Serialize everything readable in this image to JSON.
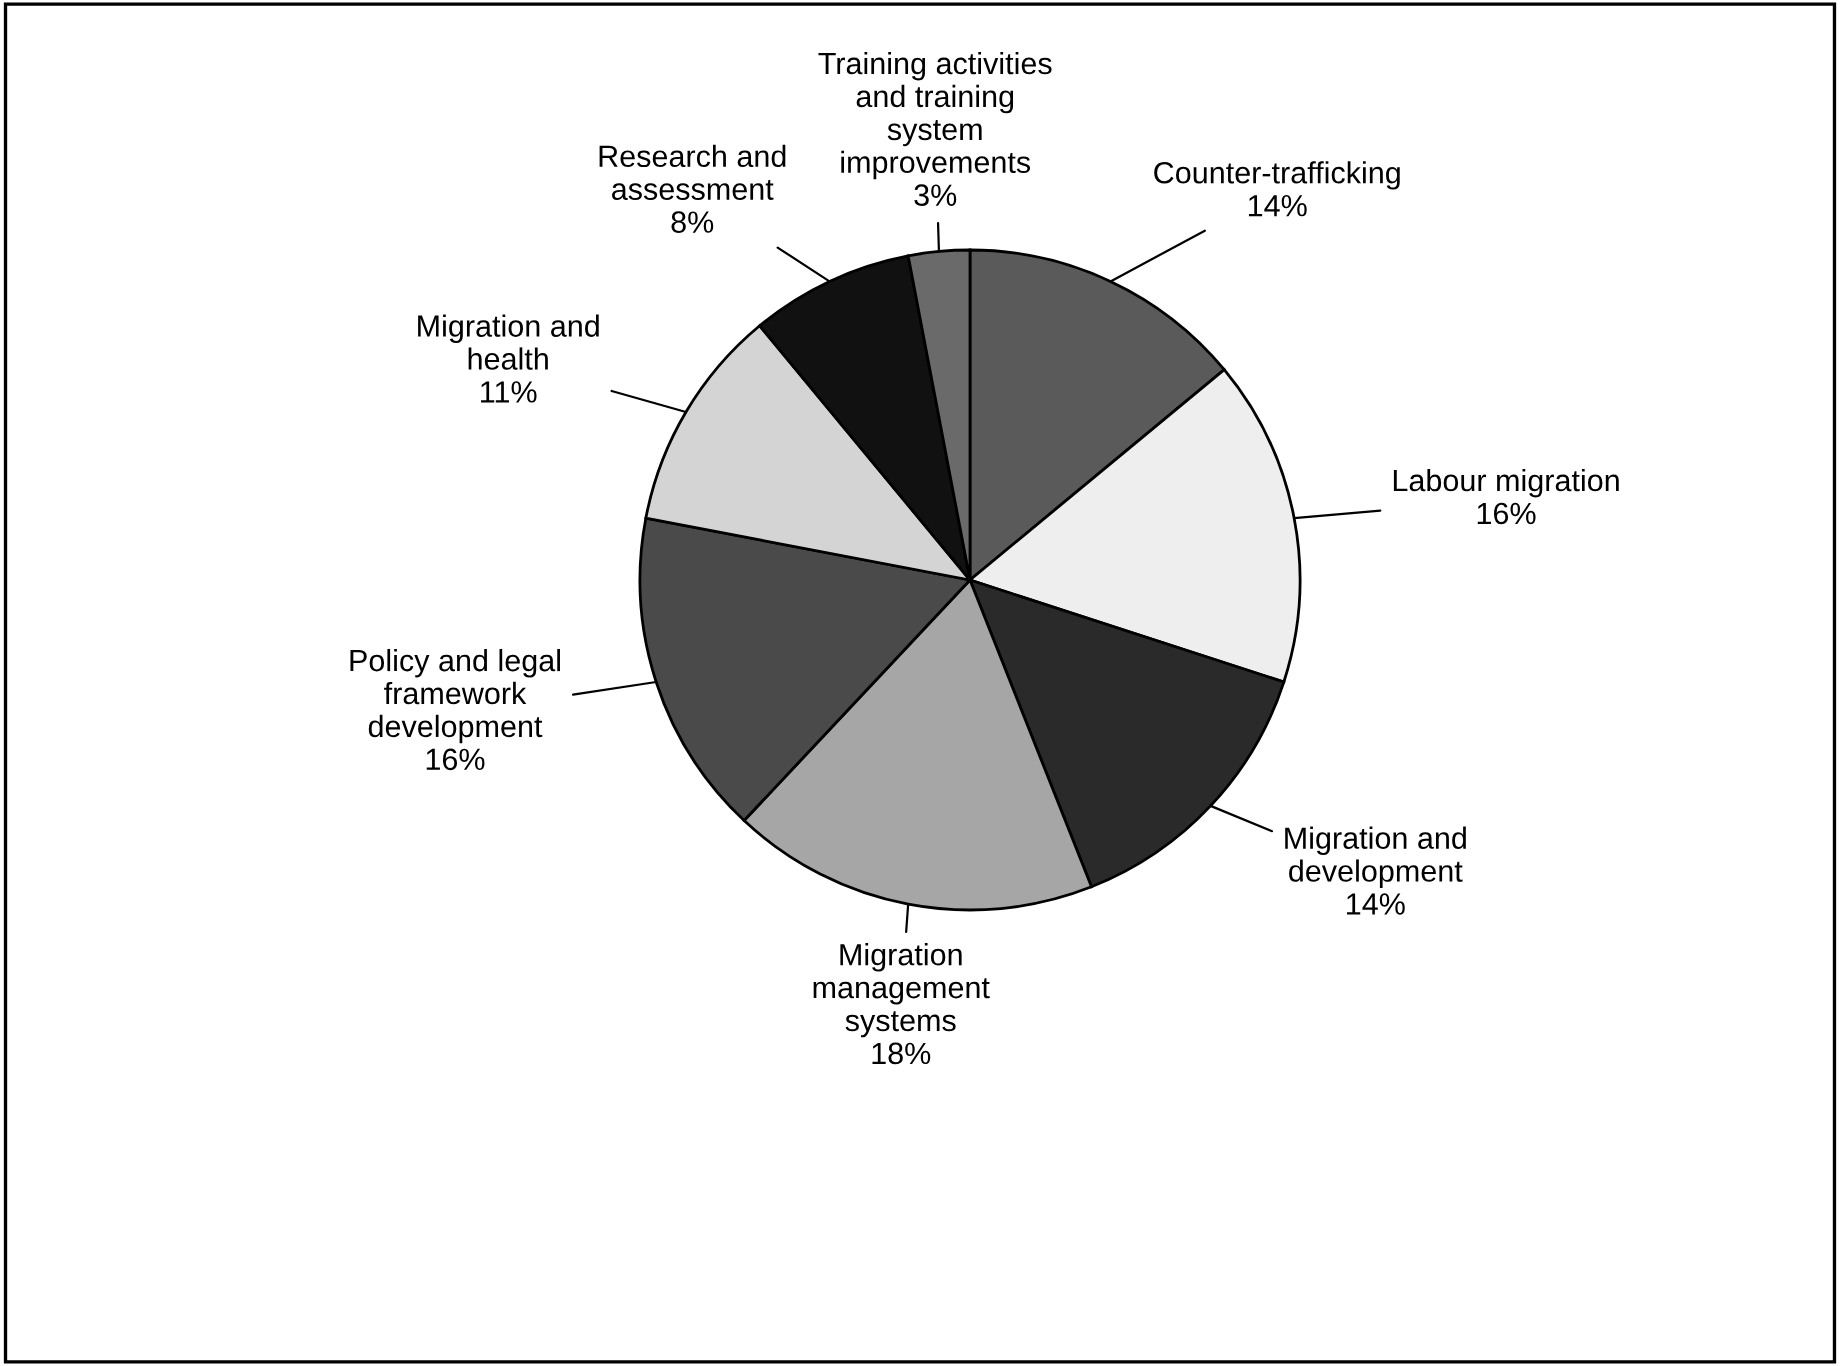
{
  "chart_data": {
    "type": "pie",
    "categories": [
      "Counter-trafficking",
      "Labour migration",
      "Migration and\ndevelopment",
      "Migration\nmanagement\nsystems",
      "Policy and legal\nframework\ndevelopment",
      "Migration and\nhealth",
      "Research and\nassessment",
      "Training activities\nand training\nsystem\nimprovements"
    ],
    "values": [
      14,
      16,
      14,
      18,
      16,
      11,
      8,
      3
    ],
    "colors": [
      "#5a5a5a",
      "#eeeeee",
      "#2a2a2a",
      "#a6a6a6",
      "#4a4a4a",
      "#d4d4d4",
      "#111111",
      "#6a6a6a"
    ],
    "value_labels": [
      "14%",
      "16%",
      "14%",
      "18%",
      "16%",
      "11%",
      "8%",
      "3%"
    ],
    "legend": false
  }
}
